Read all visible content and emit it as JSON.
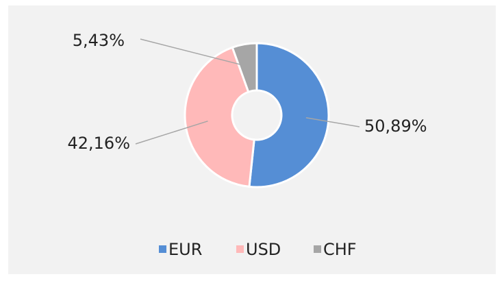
{
  "chart_data": {
    "type": "pie",
    "categories": [
      "EUR",
      "USD",
      "CHF"
    ],
    "values": [
      50.89,
      42.16,
      5.43
    ],
    "value_labels": [
      "50,89%",
      "42,16%",
      "5,43%"
    ],
    "colors": [
      "#558ed5",
      "#ffb9b9",
      "#a6a6a6"
    ],
    "legend": "bottom"
  }
}
